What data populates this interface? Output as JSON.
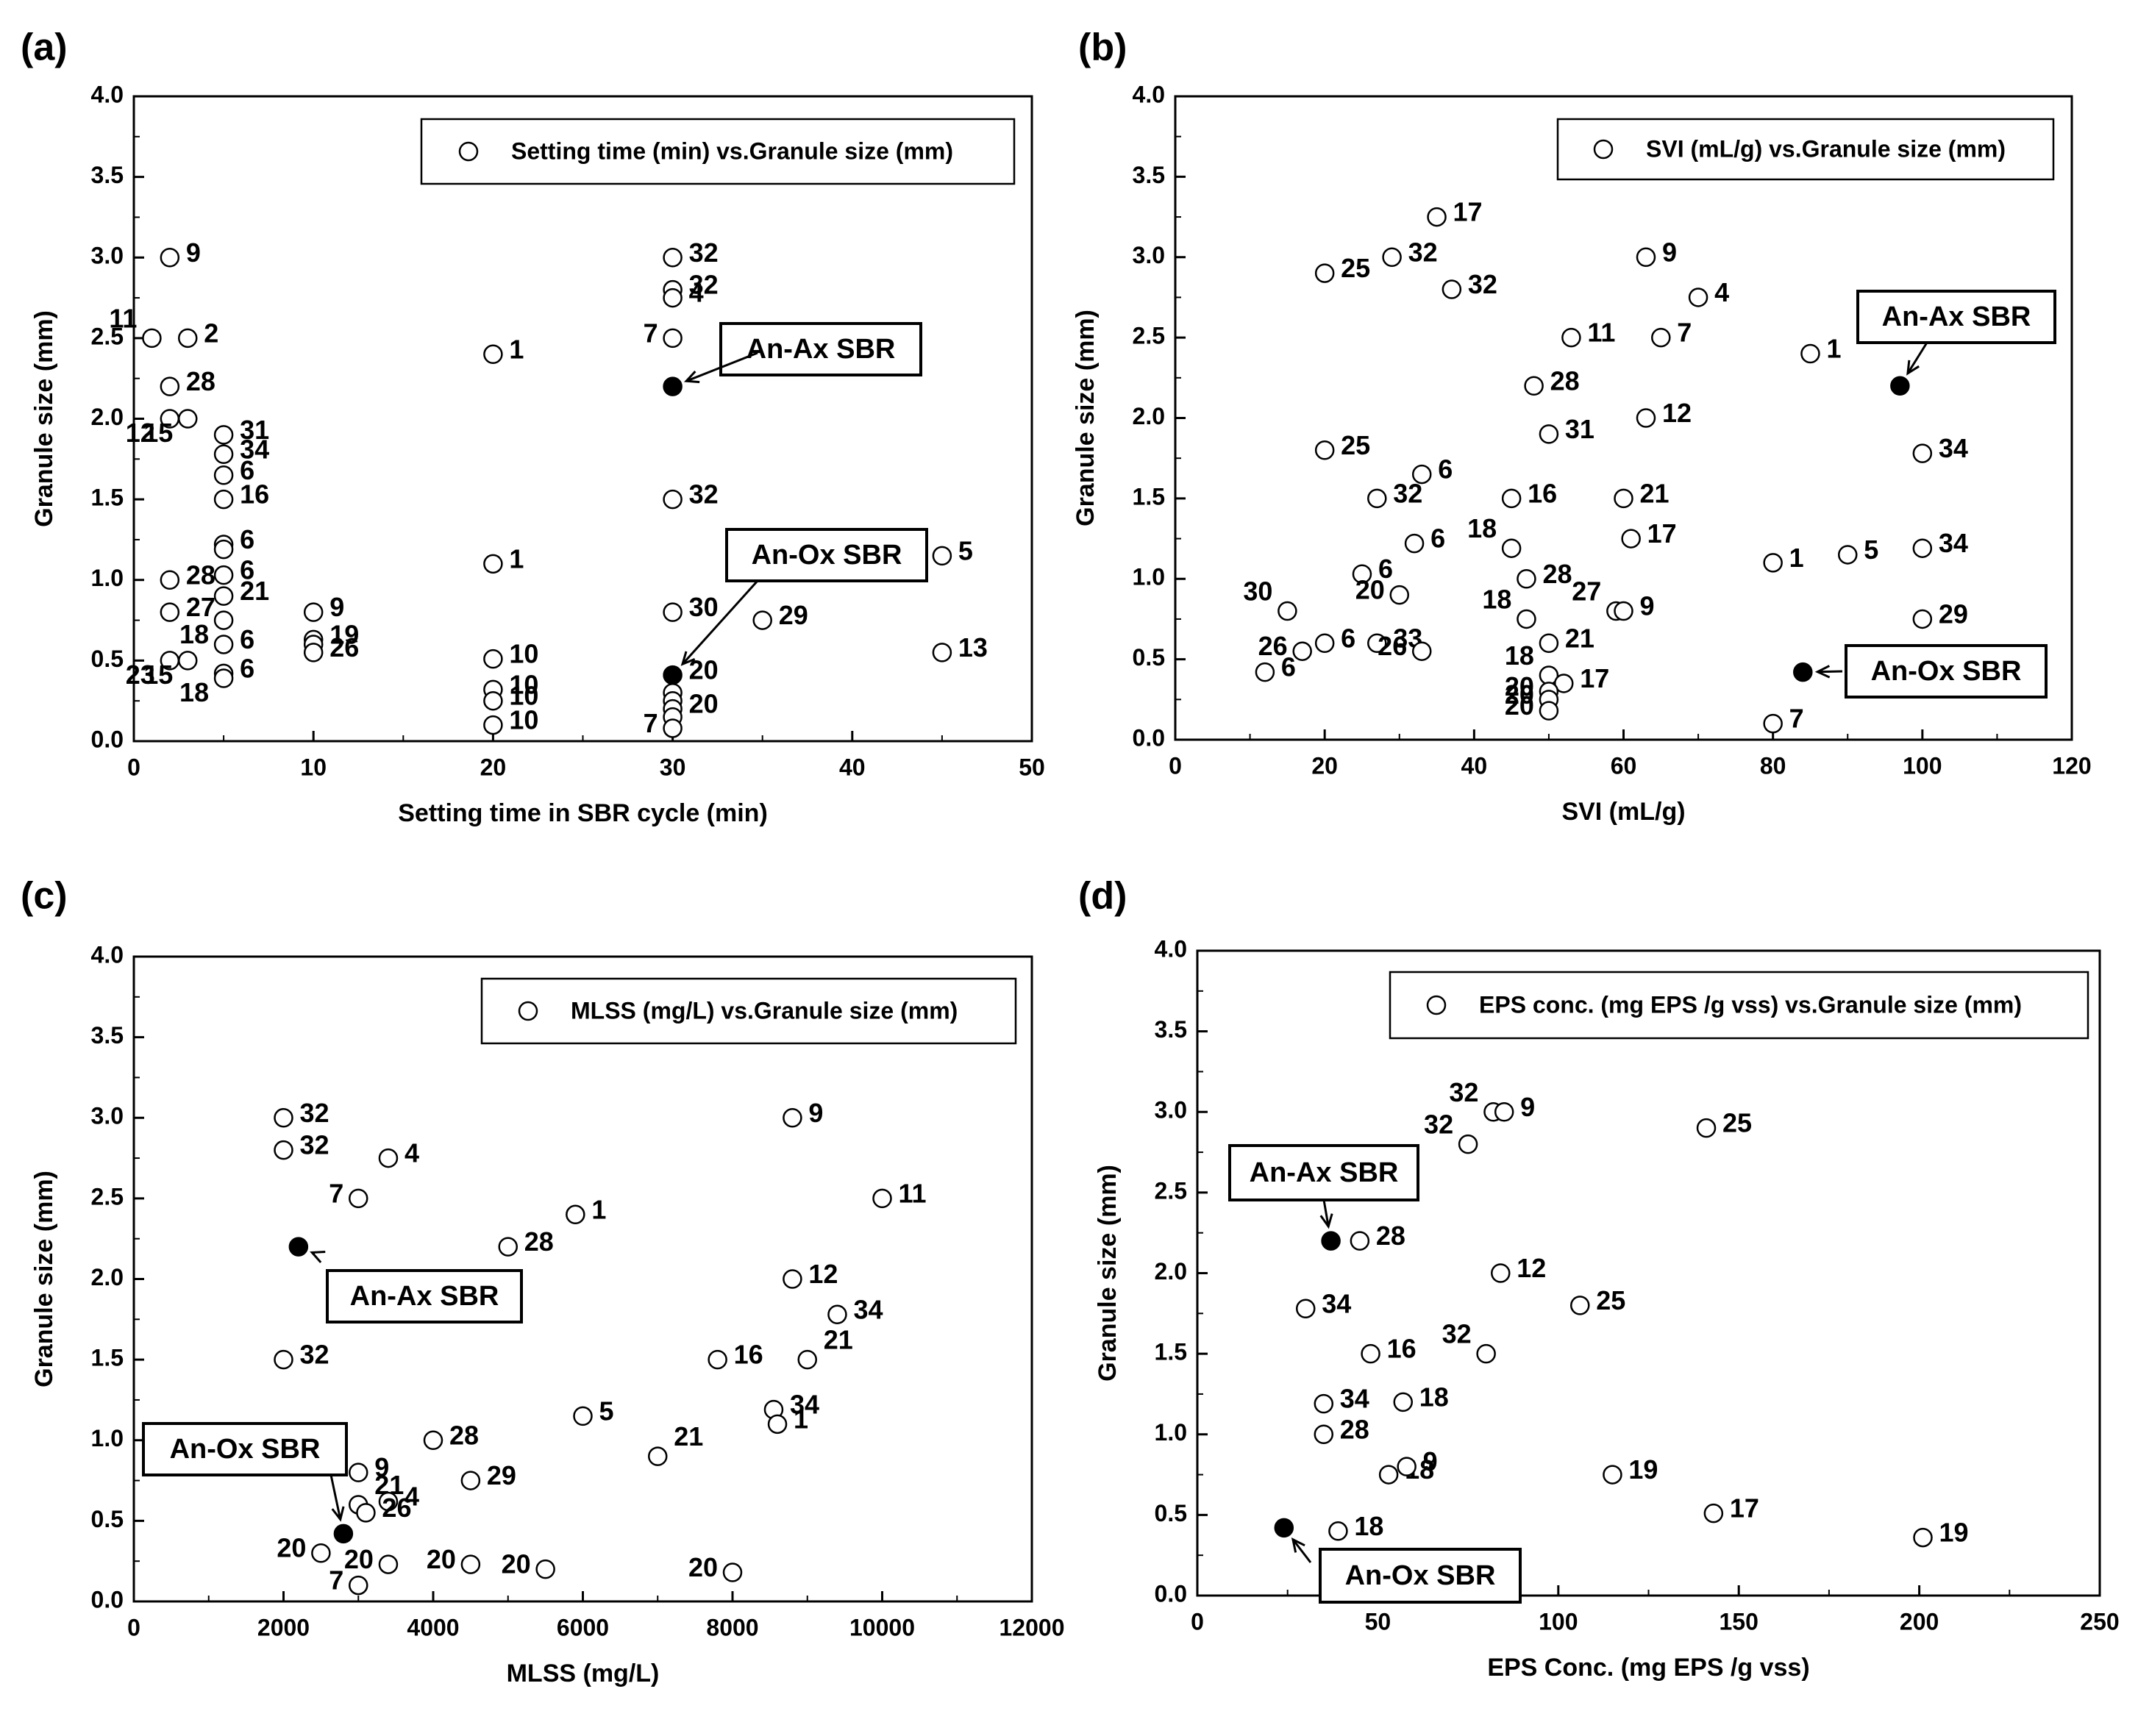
{
  "colors": {
    "open_marker_fill": "#ffffff",
    "filled_marker": "#000000",
    "ink": "#000000"
  },
  "chart_data": [
    {
      "panel_label": "(a)",
      "type": "scatter",
      "xlabel": "Setting time in SBR cycle (min)",
      "ylabel": "Granule size (mm)",
      "xlim": [
        0,
        50
      ],
      "ylim": [
        0,
        4.0
      ],
      "xticks": [
        "0",
        "10",
        "20",
        "30",
        "40",
        "50"
      ],
      "yticks": [
        "0.0",
        "0.5",
        "1.0",
        "1.5",
        "2.0",
        "2.5",
        "3.0",
        "3.5",
        "4.0"
      ],
      "legend": "Setting time (min) vs.Granule size (mm)",
      "points": [
        {
          "x": 2,
          "y": 3.0,
          "label": "9"
        },
        {
          "x": 1,
          "y": 2.5,
          "label": "11"
        },
        {
          "x": 3,
          "y": 2.5,
          "label": "2"
        },
        {
          "x": 2,
          "y": 2.2,
          "label": "28"
        },
        {
          "x": 2,
          "y": 2.0,
          "label": "12"
        },
        {
          "x": 3,
          "y": 2.0,
          "label": "15"
        },
        {
          "x": 5,
          "y": 1.9,
          "label": "31"
        },
        {
          "x": 5,
          "y": 1.78,
          "label": "34"
        },
        {
          "x": 5,
          "y": 1.65,
          "label": "6"
        },
        {
          "x": 5,
          "y": 1.5,
          "label": "16"
        },
        {
          "x": 5,
          "y": 1.22,
          "label": "6"
        },
        {
          "x": 5,
          "y": 1.19,
          "label": ""
        },
        {
          "x": 2,
          "y": 1.0,
          "label": "28"
        },
        {
          "x": 5,
          "y": 1.03,
          "label": "6"
        },
        {
          "x": 5,
          "y": 0.9,
          "label": "21"
        },
        {
          "x": 2,
          "y": 0.8,
          "label": "27"
        },
        {
          "x": 5,
          "y": 0.75,
          "label": "18"
        },
        {
          "x": 5,
          "y": 0.6,
          "label": "6"
        },
        {
          "x": 2,
          "y": 0.5,
          "label": "23"
        },
        {
          "x": 3,
          "y": 0.5,
          "label": "15"
        },
        {
          "x": 5,
          "y": 0.42,
          "label": "6"
        },
        {
          "x": 5,
          "y": 0.39,
          "label": "18"
        },
        {
          "x": 10,
          "y": 0.8,
          "label": "9"
        },
        {
          "x": 10,
          "y": 0.63,
          "label": "19"
        },
        {
          "x": 10,
          "y": 0.6,
          "label": ""
        },
        {
          "x": 10,
          "y": 0.55,
          "label": "26"
        },
        {
          "x": 20,
          "y": 2.4,
          "label": "1"
        },
        {
          "x": 20,
          "y": 1.1,
          "label": "1"
        },
        {
          "x": 20,
          "y": 0.51,
          "label": "10"
        },
        {
          "x": 20,
          "y": 0.32,
          "label": "10"
        },
        {
          "x": 20,
          "y": 0.25,
          "label": "10"
        },
        {
          "x": 20,
          "y": 0.1,
          "label": "10"
        },
        {
          "x": 30,
          "y": 3.0,
          "label": "32"
        },
        {
          "x": 30,
          "y": 2.8,
          "label": "32"
        },
        {
          "x": 30,
          "y": 2.75,
          "label": "4"
        },
        {
          "x": 30,
          "y": 2.5,
          "label": "7"
        },
        {
          "x": 30,
          "y": 1.5,
          "label": "32"
        },
        {
          "x": 30,
          "y": 0.8,
          "label": "30"
        },
        {
          "x": 30,
          "y": 0.3,
          "label": ""
        },
        {
          "x": 30,
          "y": 0.25,
          "label": ""
        },
        {
          "x": 30,
          "y": 0.2,
          "label": "20"
        },
        {
          "x": 30,
          "y": 0.15,
          "label": ""
        },
        {
          "x": 30,
          "y": 0.08,
          "label": "7"
        },
        {
          "x": 35,
          "y": 0.75,
          "label": "29"
        },
        {
          "x": 45,
          "y": 1.15,
          "label": "5"
        },
        {
          "x": 45,
          "y": 0.55,
          "label": "13"
        },
        {
          "x": 30,
          "y": 2.2,
          "label": "",
          "filled": true
        },
        {
          "x": 30,
          "y": 0.41,
          "label": "20",
          "filled": true
        }
      ],
      "callouts": [
        "An-Ax SBR",
        "An-Ox SBR"
      ]
    },
    {
      "panel_label": "(b)",
      "type": "scatter",
      "xlabel": "SVI (mL/g)",
      "ylabel": "Granule size (mm)",
      "xlim": [
        0,
        120
      ],
      "ylim": [
        0,
        4.0
      ],
      "xticks": [
        "0",
        "20",
        "40",
        "60",
        "80",
        "100",
        "120"
      ],
      "yticks": [
        "0.0",
        "0.5",
        "1.0",
        "1.5",
        "2.0",
        "2.5",
        "3.0",
        "3.5",
        "4.0"
      ],
      "legend": "SVI (mL/g) vs.Granule size (mm)",
      "points": [
        {
          "x": 35,
          "y": 3.25,
          "label": "17"
        },
        {
          "x": 29,
          "y": 3.0,
          "label": "32"
        },
        {
          "x": 20,
          "y": 2.9,
          "label": "25"
        },
        {
          "x": 37,
          "y": 2.8,
          "label": "32"
        },
        {
          "x": 63,
          "y": 3.0,
          "label": "9"
        },
        {
          "x": 70,
          "y": 2.75,
          "label": "4"
        },
        {
          "x": 53,
          "y": 2.5,
          "label": "11"
        },
        {
          "x": 65,
          "y": 2.5,
          "label": "7"
        },
        {
          "x": 85,
          "y": 2.4,
          "label": "1"
        },
        {
          "x": 48,
          "y": 2.2,
          "label": "28"
        },
        {
          "x": 63,
          "y": 2.0,
          "label": "12"
        },
        {
          "x": 50,
          "y": 1.9,
          "label": "31"
        },
        {
          "x": 20,
          "y": 1.8,
          "label": "25"
        },
        {
          "x": 33,
          "y": 1.65,
          "label": "6"
        },
        {
          "x": 100,
          "y": 1.78,
          "label": "34"
        },
        {
          "x": 27,
          "y": 1.5,
          "label": "32"
        },
        {
          "x": 45,
          "y": 1.5,
          "label": "16"
        },
        {
          "x": 60,
          "y": 1.5,
          "label": "21"
        },
        {
          "x": 32,
          "y": 1.22,
          "label": "6"
        },
        {
          "x": 45,
          "y": 1.19,
          "label": "18"
        },
        {
          "x": 61,
          "y": 1.25,
          "label": "17"
        },
        {
          "x": 80,
          "y": 1.1,
          "label": "1"
        },
        {
          "x": 90,
          "y": 1.15,
          "label": "5"
        },
        {
          "x": 100,
          "y": 1.19,
          "label": "34"
        },
        {
          "x": 25,
          "y": 1.03,
          "label": "6"
        },
        {
          "x": 47,
          "y": 1.0,
          "label": "28"
        },
        {
          "x": 30,
          "y": 0.9,
          "label": "20"
        },
        {
          "x": 15,
          "y": 0.8,
          "label": "30"
        },
        {
          "x": 59,
          "y": 0.8,
          "label": "27"
        },
        {
          "x": 60,
          "y": 0.8,
          "label": "9"
        },
        {
          "x": 47,
          "y": 0.75,
          "label": "18"
        },
        {
          "x": 100,
          "y": 0.75,
          "label": "29"
        },
        {
          "x": 20,
          "y": 0.6,
          "label": "6"
        },
        {
          "x": 27,
          "y": 0.6,
          "label": "33"
        },
        {
          "x": 50,
          "y": 0.6,
          "label": "21"
        },
        {
          "x": 17,
          "y": 0.55,
          "label": "26"
        },
        {
          "x": 33,
          "y": 0.55,
          "label": "26"
        },
        {
          "x": 12,
          "y": 0.42,
          "label": "6"
        },
        {
          "x": 50,
          "y": 0.4,
          "label": "18"
        },
        {
          "x": 52,
          "y": 0.35,
          "label": "17"
        },
        {
          "x": 50,
          "y": 0.3,
          "label": "20"
        },
        {
          "x": 50,
          "y": 0.25,
          "label": "20"
        },
        {
          "x": 50,
          "y": 0.18,
          "label": "20"
        },
        {
          "x": 80,
          "y": 0.1,
          "label": "7"
        },
        {
          "x": 97,
          "y": 2.2,
          "label": "",
          "filled": true
        },
        {
          "x": 84,
          "y": 0.42,
          "label": "",
          "filled": true
        }
      ],
      "callouts": [
        "An-Ax SBR",
        "An-Ox SBR"
      ]
    },
    {
      "panel_label": "(c)",
      "type": "scatter",
      "xlabel": "MLSS (mg/L)",
      "ylabel": "Granule size (mm)",
      "xlim": [
        0,
        12000
      ],
      "ylim": [
        0,
        4.0
      ],
      "xticks": [
        "0",
        "2000",
        "4000",
        "6000",
        "8000",
        "10000",
        "12000"
      ],
      "yticks": [
        "0.0",
        "0.5",
        "1.0",
        "1.5",
        "2.0",
        "2.5",
        "3.0",
        "3.5",
        "4.0"
      ],
      "legend": "MLSS (mg/L) vs.Granule size (mm)",
      "points": [
        {
          "x": 2000,
          "y": 3.0,
          "label": "32"
        },
        {
          "x": 2000,
          "y": 2.8,
          "label": "32"
        },
        {
          "x": 3400,
          "y": 2.75,
          "label": "4"
        },
        {
          "x": 3000,
          "y": 2.5,
          "label": "7"
        },
        {
          "x": 5900,
          "y": 2.4,
          "label": "1"
        },
        {
          "x": 5000,
          "y": 2.2,
          "label": "28"
        },
        {
          "x": 8800,
          "y": 3.0,
          "label": "9"
        },
        {
          "x": 10000,
          "y": 2.5,
          "label": "11"
        },
        {
          "x": 8800,
          "y": 2.0,
          "label": "12"
        },
        {
          "x": 9400,
          "y": 1.78,
          "label": "34"
        },
        {
          "x": 2000,
          "y": 1.5,
          "label": "32"
        },
        {
          "x": 7800,
          "y": 1.5,
          "label": "16"
        },
        {
          "x": 9000,
          "y": 1.5,
          "label": "21"
        },
        {
          "x": 6000,
          "y": 1.15,
          "label": "5"
        },
        {
          "x": 8550,
          "y": 1.19,
          "label": "34"
        },
        {
          "x": 8600,
          "y": 1.1,
          "label": "1"
        },
        {
          "x": 4000,
          "y": 1.0,
          "label": "28"
        },
        {
          "x": 7000,
          "y": 0.9,
          "label": "21"
        },
        {
          "x": 3000,
          "y": 0.8,
          "label": "9"
        },
        {
          "x": 4500,
          "y": 0.75,
          "label": "29"
        },
        {
          "x": 3000,
          "y": 0.6,
          "label": "21"
        },
        {
          "x": 3400,
          "y": 0.62,
          "label": "4"
        },
        {
          "x": 3100,
          "y": 0.55,
          "label": "26"
        },
        {
          "x": 2500,
          "y": 0.3,
          "label": "20"
        },
        {
          "x": 3400,
          "y": 0.23,
          "label": "20"
        },
        {
          "x": 4500,
          "y": 0.23,
          "label": "20"
        },
        {
          "x": 5500,
          "y": 0.2,
          "label": "20"
        },
        {
          "x": 8000,
          "y": 0.18,
          "label": "20"
        },
        {
          "x": 3000,
          "y": 0.1,
          "label": "7"
        },
        {
          "x": 2200,
          "y": 2.2,
          "label": "",
          "filled": true
        },
        {
          "x": 2800,
          "y": 0.42,
          "label": "",
          "filled": true
        }
      ],
      "callouts": [
        "An-Ax SBR",
        "An-Ox SBR"
      ]
    },
    {
      "panel_label": "(d)",
      "type": "scatter",
      "xlabel": "EPS Conc. (mg EPS /g vss)",
      "ylabel": "Granule size (mm)",
      "xlim": [
        0,
        250
      ],
      "ylim": [
        0,
        4.0
      ],
      "xticks": [
        "0",
        "50",
        "100",
        "150",
        "200",
        "250"
      ],
      "yticks": [
        "0.0",
        "0.5",
        "1.0",
        "1.5",
        "2.0",
        "2.5",
        "3.0",
        "3.5",
        "4.0"
      ],
      "legend": "EPS conc. (mg EPS /g vss) vs.Granule size (mm)",
      "points": [
        {
          "x": 82,
          "y": 3.0,
          "label": "32"
        },
        {
          "x": 85,
          "y": 3.0,
          "label": "9"
        },
        {
          "x": 75,
          "y": 2.8,
          "label": "32"
        },
        {
          "x": 141,
          "y": 2.9,
          "label": "25"
        },
        {
          "x": 45,
          "y": 2.2,
          "label": "28"
        },
        {
          "x": 84,
          "y": 2.0,
          "label": "12"
        },
        {
          "x": 106,
          "y": 1.8,
          "label": "25"
        },
        {
          "x": 30,
          "y": 1.78,
          "label": "34"
        },
        {
          "x": 48,
          "y": 1.5,
          "label": "16"
        },
        {
          "x": 80,
          "y": 1.5,
          "label": "32"
        },
        {
          "x": 35,
          "y": 1.19,
          "label": "34"
        },
        {
          "x": 57,
          "y": 1.2,
          "label": "18"
        },
        {
          "x": 35,
          "y": 1.0,
          "label": "28"
        },
        {
          "x": 53,
          "y": 0.75,
          "label": "18"
        },
        {
          "x": 58,
          "y": 0.8,
          "label": "9"
        },
        {
          "x": 115,
          "y": 0.75,
          "label": "19"
        },
        {
          "x": 39,
          "y": 0.4,
          "label": "18"
        },
        {
          "x": 143,
          "y": 0.51,
          "label": "17"
        },
        {
          "x": 201,
          "y": 0.36,
          "label": "19"
        },
        {
          "x": 37,
          "y": 2.2,
          "label": "",
          "filled": true
        },
        {
          "x": 24,
          "y": 0.42,
          "label": "",
          "filled": true
        }
      ],
      "callouts": [
        "An-Ax SBR",
        "An-Ox SBR"
      ]
    }
  ]
}
